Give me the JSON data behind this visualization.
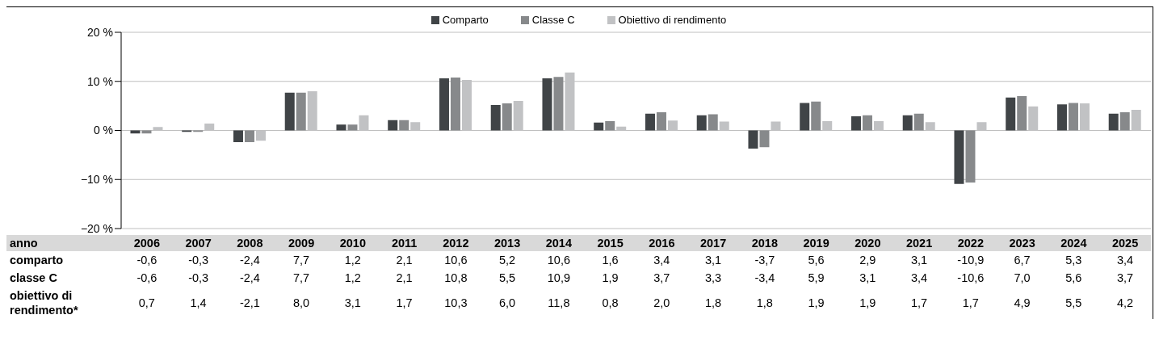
{
  "chart_data": {
    "type": "bar",
    "categories": [
      "2006",
      "2007",
      "2008",
      "2009",
      "2010",
      "2011",
      "2012",
      "2013",
      "2014",
      "2015",
      "2016",
      "2017",
      "2018",
      "2019",
      "2020",
      "2021",
      "2022",
      "2023",
      "2024",
      "2025"
    ],
    "series": [
      {
        "name": "Comparto",
        "color": "#404447",
        "values": [
          -0.6,
          -0.3,
          -2.4,
          7.7,
          1.2,
          2.1,
          10.6,
          5.2,
          10.6,
          1.6,
          3.4,
          3.1,
          -3.7,
          5.6,
          2.9,
          3.1,
          -10.9,
          6.7,
          5.3,
          3.4
        ],
        "value_labels": [
          "-0,6",
          "-0,3",
          "-2,4",
          "7,7",
          "1,2",
          "2,1",
          "10,6",
          "5,2",
          "10,6",
          "1,6",
          "3,4",
          "3,1",
          "-3,7",
          "5,6",
          "2,9",
          "3,1",
          "-10,9",
          "6,7",
          "5,3",
          "3,4"
        ]
      },
      {
        "name": "Classe C",
        "color": "#87898b",
        "values": [
          -0.6,
          -0.3,
          -2.4,
          7.7,
          1.2,
          2.1,
          10.8,
          5.5,
          10.9,
          1.9,
          3.7,
          3.3,
          -3.4,
          5.9,
          3.1,
          3.4,
          -10.6,
          7.0,
          5.6,
          3.7
        ],
        "value_labels": [
          "-0,6",
          "-0,3",
          "-2,4",
          "7,7",
          "1,2",
          "2,1",
          "10,8",
          "5,5",
          "10,9",
          "1,9",
          "3,7",
          "3,3",
          "-3,4",
          "5,9",
          "3,1",
          "3,4",
          "-10,6",
          "7,0",
          "5,6",
          "3,7"
        ]
      },
      {
        "name": "Obiettivo di rendimento",
        "color": "#c1c2c4",
        "values": [
          0.7,
          1.4,
          -2.1,
          8.0,
          3.1,
          1.7,
          10.3,
          6.0,
          11.8,
          0.8,
          2.0,
          1.8,
          1.8,
          1.9,
          1.9,
          1.7,
          1.7,
          4.9,
          5.5,
          4.2
        ],
        "value_labels": [
          "0,7",
          "1,4",
          "-2,1",
          "8,0",
          "3,1",
          "1,7",
          "10,3",
          "6,0",
          "11,8",
          "0,8",
          "2,0",
          "1,8",
          "1,8",
          "1,9",
          "1,9",
          "1,7",
          "1,7",
          "4,9",
          "5,5",
          "4,2"
        ]
      }
    ],
    "ylim": [
      -20,
      20
    ],
    "yticks": [
      {
        "value": -20,
        "label": "−20 %"
      },
      {
        "value": -10,
        "label": "−10 %"
      },
      {
        "value": 0,
        "label": "0 %"
      },
      {
        "value": 10,
        "label": "10 %"
      },
      {
        "value": 20,
        "label": "20 %"
      }
    ],
    "grid": "y",
    "legend": "top",
    "annotations": [
      "anno",
      "comparto",
      "classe C",
      "obiettivo di rendimento*"
    ]
  }
}
